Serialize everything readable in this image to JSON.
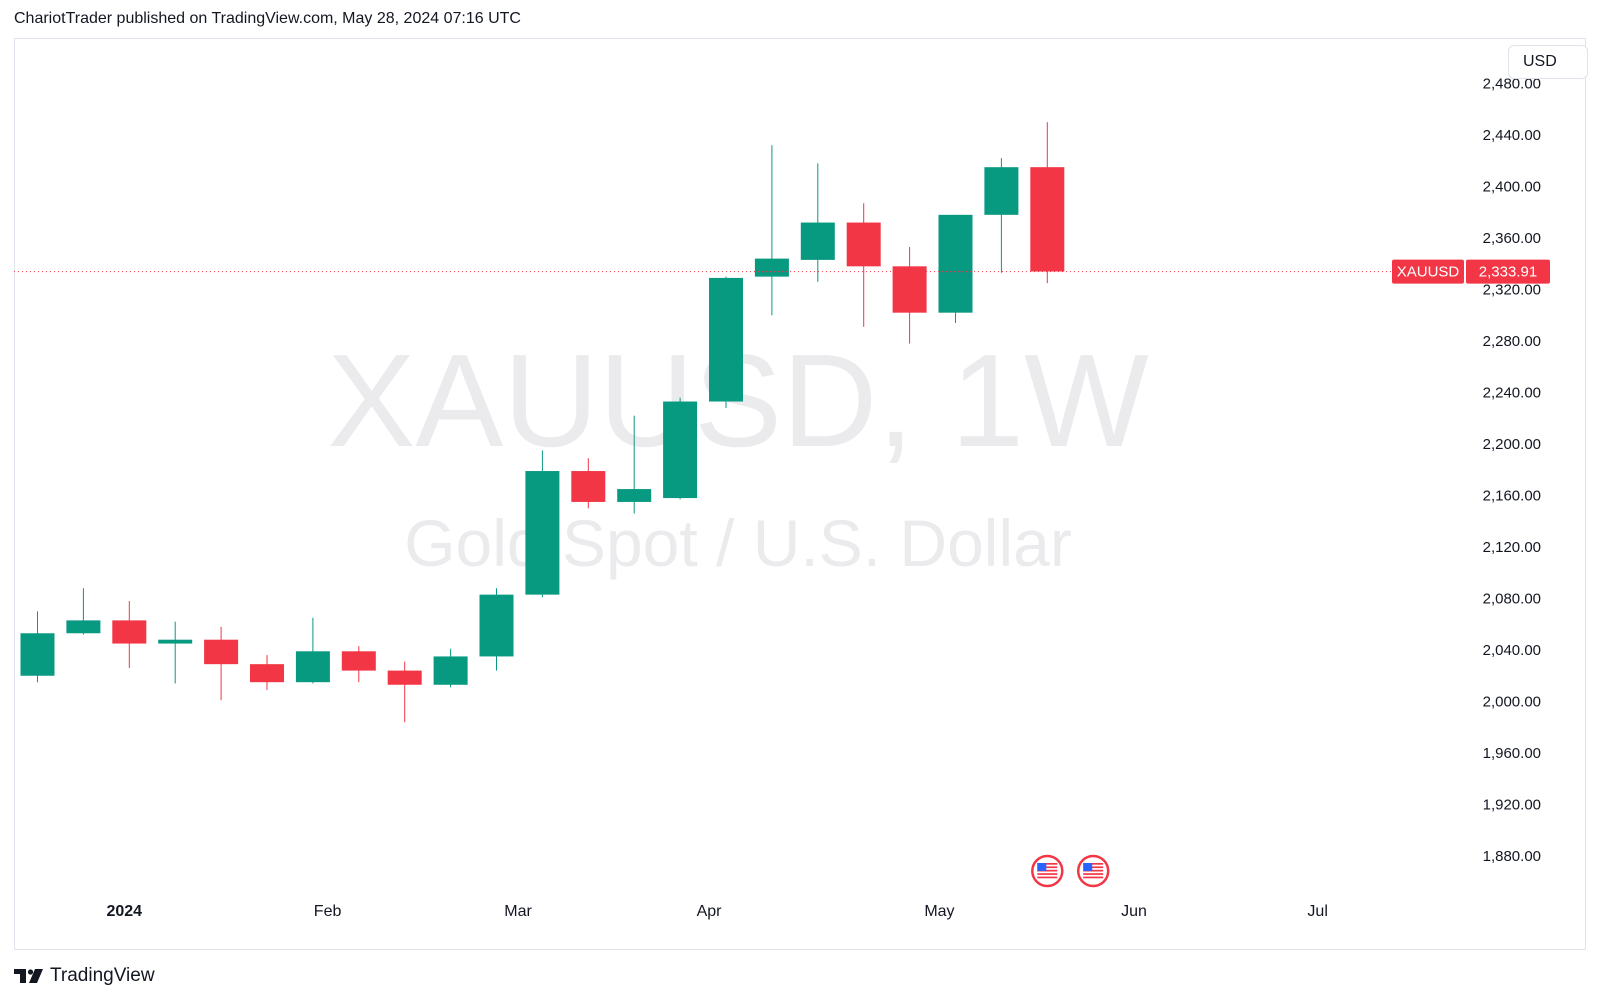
{
  "header": {
    "published_text": "ChariotTrader published on TradingView.com, May 28, 2024 07:16 UTC"
  },
  "toolbar": {
    "currency_label": "USD"
  },
  "footer": {
    "brand": "TradingView"
  },
  "watermark": {
    "symbol_line": "XAUUSD, 1W",
    "description_line": "Gold Spot / U.S. Dollar"
  },
  "current_price": {
    "symbol_label": "XAUUSD",
    "value_label": "2,333.91",
    "value": 2333.91
  },
  "colors": {
    "up": "#089981",
    "down": "#f23645",
    "current_price_line": "#f23645",
    "wick": "#9598a1"
  },
  "events": [
    {
      "icon": "us-flag-icon",
      "week_index": 22
    },
    {
      "icon": "us-flag-icon",
      "week_index": 23
    }
  ],
  "chart_data": {
    "type": "candlestick",
    "symbol": "XAUUSD",
    "interval": "1W",
    "y_ticks": [
      "1,880.00",
      "1,920.00",
      "1,960.00",
      "2,000.00",
      "2,040.00",
      "2,080.00",
      "2,120.00",
      "2,160.00",
      "2,200.00",
      "2,240.00",
      "2,280.00",
      "2,320.00",
      "2,360.00",
      "2,400.00",
      "2,440.00",
      "2,480.00"
    ],
    "y_tick_values": [
      1880,
      1920,
      1960,
      2000,
      2040,
      2080,
      2120,
      2160,
      2200,
      2240,
      2280,
      2320,
      2360,
      2400,
      2440,
      2480
    ],
    "ylim": [
      1860,
      2490
    ],
    "x_ticks": [
      {
        "label": "2024",
        "week_index": 1.89
      },
      {
        "label": "Feb",
        "week_index": 6.32
      },
      {
        "label": "Mar",
        "week_index": 10.47
      },
      {
        "label": "Apr",
        "week_index": 14.63
      },
      {
        "label": "May",
        "week_index": 19.65
      },
      {
        "label": "Jun",
        "week_index": 23.89
      },
      {
        "label": "Jul",
        "week_index": 27.89
      }
    ],
    "x_range": [
      -0.5,
      33.5
    ],
    "candles": [
      {
        "o": 2020,
        "h": 2070,
        "l": 2015,
        "c": 2053
      },
      {
        "o": 2053,
        "h": 2088,
        "l": 2052,
        "c": 2063
      },
      {
        "o": 2063,
        "h": 2078,
        "l": 2026,
        "c": 2045
      },
      {
        "o": 2045,
        "h": 2062,
        "l": 2014,
        "c": 2048
      },
      {
        "o": 2048,
        "h": 2058,
        "l": 2001,
        "c": 2029
      },
      {
        "o": 2029,
        "h": 2036,
        "l": 2009,
        "c": 2015
      },
      {
        "o": 2015,
        "h": 2065,
        "l": 2014,
        "c": 2039
      },
      {
        "o": 2039,
        "h": 2043,
        "l": 2015,
        "c": 2024
      },
      {
        "o": 2024,
        "h": 2031,
        "l": 1984,
        "c": 2013
      },
      {
        "o": 2013,
        "h": 2041,
        "l": 2011,
        "c": 2035
      },
      {
        "o": 2035,
        "h": 2088,
        "l": 2024,
        "c": 2083
      },
      {
        "o": 2083,
        "h": 2195,
        "l": 2081,
        "c": 2179
      },
      {
        "o": 2179,
        "h": 2189,
        "l": 2150,
        "c": 2155
      },
      {
        "o": 2155,
        "h": 2222,
        "l": 2146,
        "c": 2165
      },
      {
        "o": 2158,
        "h": 2236,
        "l": 2157,
        "c": 2233
      },
      {
        "o": 2233,
        "h": 2330,
        "l": 2228,
        "c": 2329
      },
      {
        "o": 2330,
        "h": 2432,
        "l": 2300,
        "c": 2344
      },
      {
        "o": 2343,
        "h": 2418,
        "l": 2326,
        "c": 2372
      },
      {
        "o": 2372,
        "h": 2387,
        "l": 2291,
        "c": 2338
      },
      {
        "o": 2338,
        "h": 2353,
        "l": 2278,
        "c": 2302
      },
      {
        "o": 2302,
        "h": 2378,
        "l": 2294,
        "c": 2378
      },
      {
        "o": 2378,
        "h": 2422,
        "l": 2333,
        "c": 2415
      },
      {
        "o": 2415,
        "h": 2450,
        "l": 2325,
        "c": 2334
      }
    ]
  }
}
